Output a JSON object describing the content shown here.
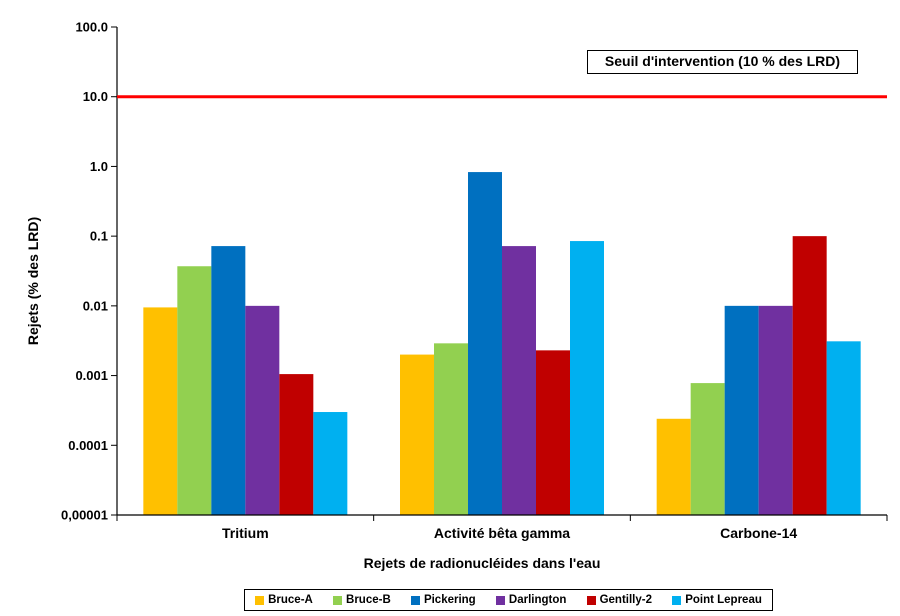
{
  "chart_data": {
    "type": "bar",
    "title": "",
    "xlabel": "Rejets de radionucléides dans l'eau",
    "ylabel": "Rejets (% des LRD)",
    "yscale": "log",
    "ylim": [
      1e-05,
      100
    ],
    "yticks": [
      {
        "value": 100,
        "label": "100.0"
      },
      {
        "value": 10,
        "label": "10.0"
      },
      {
        "value": 1,
        "label": "1.0"
      },
      {
        "value": 0.1,
        "label": "0.1"
      },
      {
        "value": 0.01,
        "label": "0.01"
      },
      {
        "value": 0.001,
        "label": "0.001"
      },
      {
        "value": 0.0001,
        "label": "0.0001"
      },
      {
        "value": 1e-05,
        "label": "0,00001"
      }
    ],
    "categories": [
      "Tritium",
      "Activité bêta gamma",
      "Carbone-14"
    ],
    "series": [
      {
        "name": "Bruce-A",
        "color": "#FFC000",
        "values": [
          0.0095,
          0.002,
          0.00024
        ]
      },
      {
        "name": "Bruce-B",
        "color": "#92D050",
        "values": [
          0.037,
          0.0029,
          0.00078
        ]
      },
      {
        "name": "Pickering",
        "color": "#0070C0",
        "values": [
          0.072,
          0.83,
          0.01
        ]
      },
      {
        "name": "Darlington",
        "color": "#7030A0",
        "values": [
          0.01,
          0.072,
          0.01
        ]
      },
      {
        "name": "Gentilly-2",
        "color": "#C00000",
        "values": [
          0.00105,
          0.0023,
          0.1
        ]
      },
      {
        "name": "Point Lepreau",
        "color": "#00B0F0",
        "values": [
          0.0003,
          0.085,
          0.0031
        ]
      }
    ],
    "threshold": {
      "value": 10,
      "label": "Seuil d'intervention (10 % des LRD)",
      "color": "#FF0000"
    },
    "legend_position": "bottom",
    "grid": false
  }
}
